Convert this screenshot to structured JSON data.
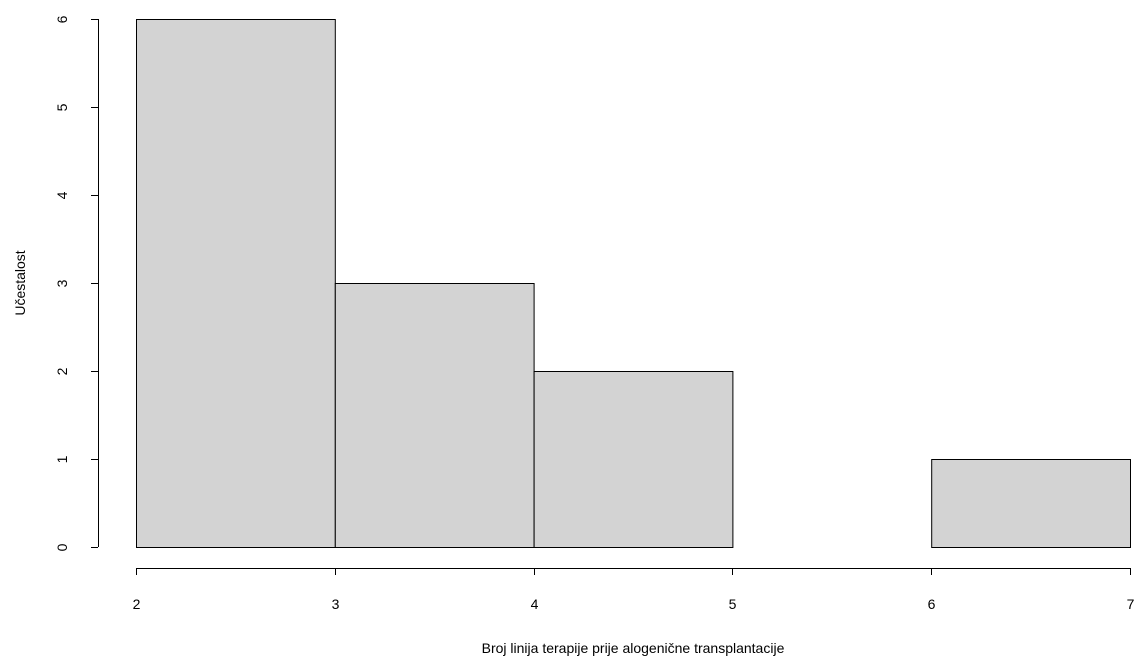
{
  "chart_data": {
    "type": "bar",
    "subtype": "histogram",
    "bins": [
      {
        "from": 2,
        "to": 3,
        "count": 6
      },
      {
        "from": 3,
        "to": 4,
        "count": 3
      },
      {
        "from": 4,
        "to": 5,
        "count": 2
      },
      {
        "from": 5,
        "to": 6,
        "count": 0
      },
      {
        "from": 6,
        "to": 7,
        "count": 1
      }
    ],
    "xlabel": "Broj linija terapije prije alogenične transplantacije",
    "ylabel": "Učestalost",
    "xlim": [
      2,
      7
    ],
    "ylim": [
      0,
      6
    ],
    "x_ticks": [
      "2",
      "3",
      "4",
      "5",
      "6",
      "7"
    ],
    "y_ticks": [
      "0",
      "1",
      "2",
      "3",
      "4",
      "5",
      "6"
    ],
    "grid": false,
    "colors": {
      "bar_fill": "#d3d3d3",
      "bar_stroke": "#000000"
    }
  }
}
